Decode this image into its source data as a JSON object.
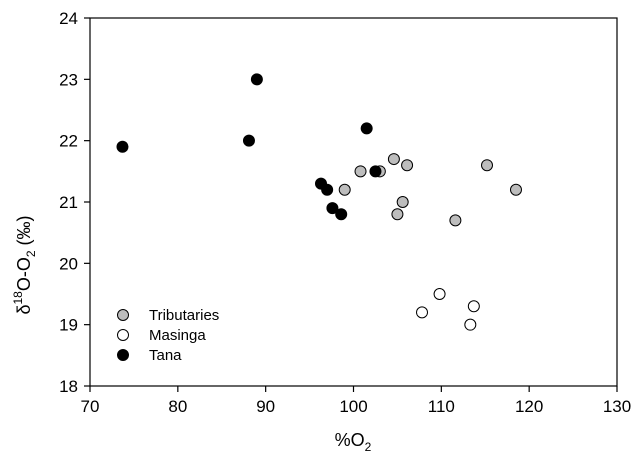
{
  "chart_data": {
    "type": "scatter",
    "xlabel": {
      "prefix": "%O",
      "sub": "2"
    },
    "ylabel": {
      "delta": "δ",
      "sup": "18",
      "mid": "O-O",
      "sub": "2",
      "suffix": " (‰)"
    },
    "xlim": [
      70,
      130
    ],
    "ylim": [
      18,
      24
    ],
    "xticks": [
      "70",
      "80",
      "90",
      "100",
      "110",
      "120",
      "130"
    ],
    "yticks": [
      "18",
      "19",
      "20",
      "21",
      "22",
      "23",
      "24"
    ],
    "grid": false,
    "legend_position": "bottom-left",
    "series": [
      {
        "name": "Tributaries",
        "fill": "#bdbdbd",
        "points": [
          {
            "x": 99.0,
            "y": 21.2
          },
          {
            "x": 100.8,
            "y": 21.5
          },
          {
            "x": 103.0,
            "y": 21.5
          },
          {
            "x": 104.6,
            "y": 21.7
          },
          {
            "x": 106.1,
            "y": 21.6
          },
          {
            "x": 105.6,
            "y": 21.0
          },
          {
            "x": 105.0,
            "y": 20.8
          },
          {
            "x": 111.6,
            "y": 20.7
          },
          {
            "x": 115.2,
            "y": 21.6
          },
          {
            "x": 118.5,
            "y": 21.2
          }
        ]
      },
      {
        "name": "Masinga",
        "fill": "#ffffff",
        "points": [
          {
            "x": 107.8,
            "y": 19.2
          },
          {
            "x": 109.8,
            "y": 19.5
          },
          {
            "x": 113.7,
            "y": 19.3
          },
          {
            "x": 113.3,
            "y": 19.0
          }
        ]
      },
      {
        "name": "Tana",
        "fill": "#000000",
        "points": [
          {
            "x": 73.7,
            "y": 21.9
          },
          {
            "x": 88.1,
            "y": 22.0
          },
          {
            "x": 89.0,
            "y": 23.0
          },
          {
            "x": 101.5,
            "y": 22.2
          },
          {
            "x": 102.5,
            "y": 21.5
          },
          {
            "x": 96.3,
            "y": 21.3
          },
          {
            "x": 97.0,
            "y": 21.2
          },
          {
            "x": 97.6,
            "y": 20.9
          },
          {
            "x": 98.6,
            "y": 20.8
          }
        ]
      }
    ]
  }
}
